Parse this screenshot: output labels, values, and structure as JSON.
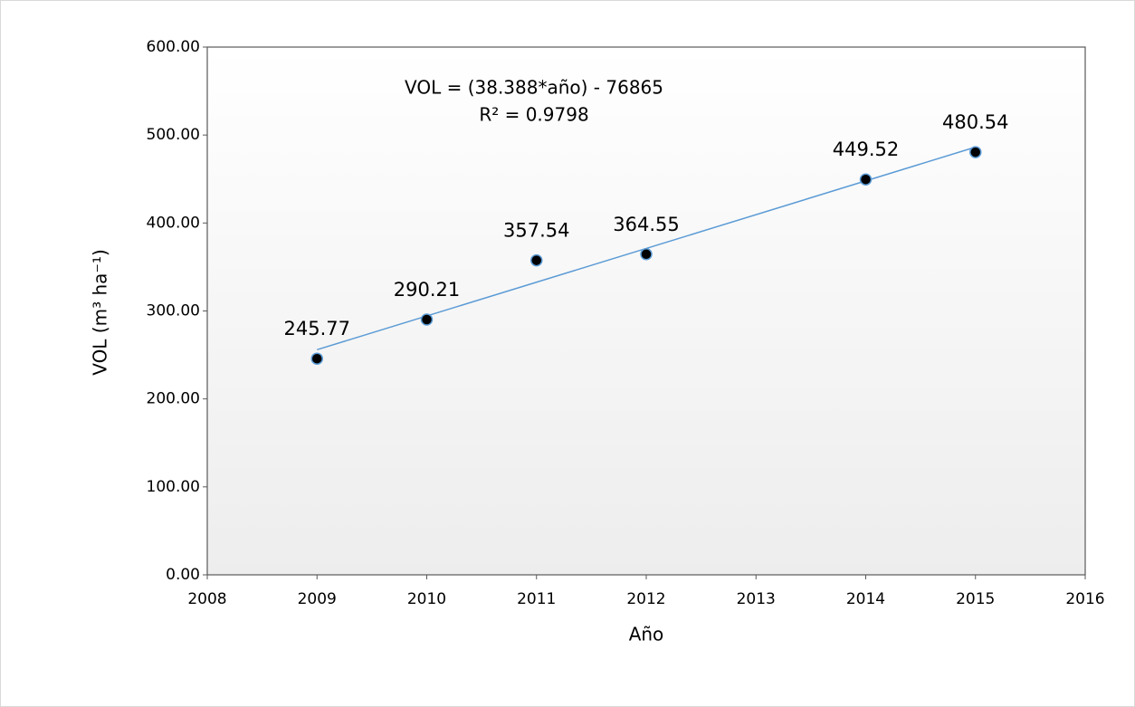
{
  "chart_data": {
    "type": "scatter",
    "xlabel": "Año",
    "ylabel": "VOL (m³ ha⁻¹)",
    "annotations": [
      "VOL = (38.388*año) - 76865",
      "R² = 0.9798"
    ],
    "x": [
      2009,
      2010,
      2011,
      2012,
      2014,
      2015
    ],
    "series": [
      {
        "name": "VOL",
        "color": "#000000",
        "values": [
          245.77,
          290.21,
          357.54,
          364.55,
          449.52,
          480.54
        ]
      }
    ],
    "trendline": {
      "type": "linear",
      "color": "#5b9bd5"
    },
    "xlim": [
      2008,
      2016
    ],
    "xticks": [
      2008,
      2009,
      2010,
      2011,
      2012,
      2013,
      2014,
      2015,
      2016
    ],
    "ylim": [
      0,
      600
    ],
    "yticks": [
      {
        "value": 0,
        "label": "0.00"
      },
      {
        "value": 100,
        "label": "100.00"
      },
      {
        "value": 200,
        "label": "200.00"
      },
      {
        "value": 300,
        "label": "300.00"
      },
      {
        "value": 400,
        "label": "400.00"
      },
      {
        "value": 500,
        "label": "500.00"
      },
      {
        "value": 600,
        "label": "600.00"
      }
    ],
    "grid": false
  }
}
